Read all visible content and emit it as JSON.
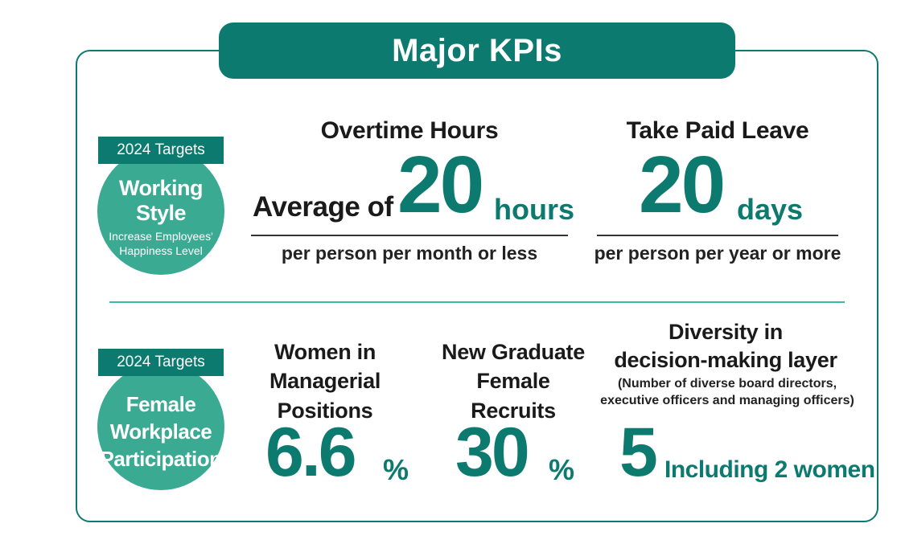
{
  "title": "Major KPIs",
  "rows": [
    {
      "targets_label": "2024 Targets",
      "badge_title": "Working Style",
      "badge_sub_line1": "Increase Employees'",
      "badge_sub_line2": "Happiness Level",
      "kpis": [
        {
          "heading": "Overtime Hours",
          "prefix": "Average of",
          "value": "20",
          "unit": "hours",
          "footnote": "per person per month or less"
        },
        {
          "heading": "Take Paid Leave",
          "value": "20",
          "unit": "days",
          "footnote": "per person per year or more"
        }
      ]
    },
    {
      "targets_label": "2024 Targets",
      "badge_lines": [
        "Female",
        "Workplace",
        "Participation"
      ],
      "kpis": [
        {
          "heading_line1": "Women in",
          "heading_line2": "Managerial Positions",
          "value": "6.6",
          "unit": "%"
        },
        {
          "heading_line1": "New Graduate",
          "heading_line2": "Female Recruits",
          "value": "30",
          "unit": "%"
        },
        {
          "heading_line1": "Diversity in",
          "heading_line2": "decision-making layer",
          "note_line1": "(Number of diverse board directors,",
          "note_line2": "executive officers and managing officers)",
          "value": "5",
          "unit": "Including 2 women"
        }
      ]
    }
  ],
  "colors": {
    "primary": "#0c7a6e",
    "badge": "#3aaa93",
    "divider": "#3fb8a5"
  }
}
